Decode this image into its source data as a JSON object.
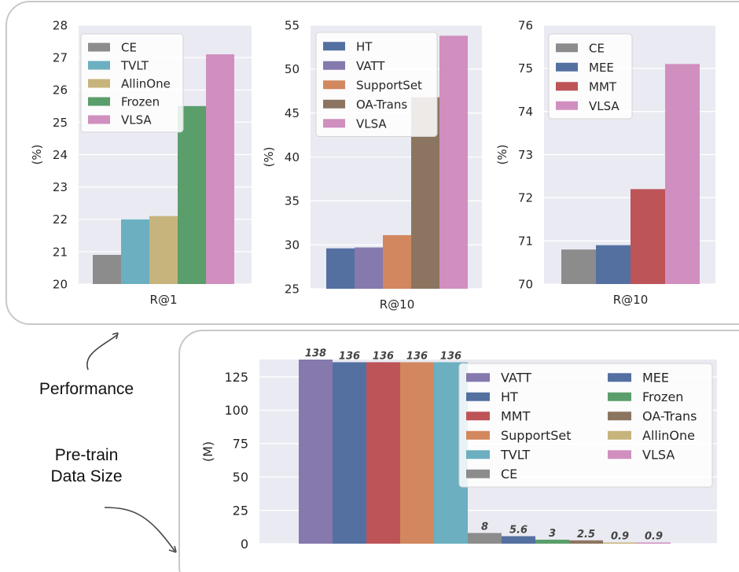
{
  "labels": {
    "performance": "Performance",
    "pretrain_line1": "Pre-train",
    "pretrain_line2": "Data Size"
  },
  "colors": {
    "CE": "#8c8c8c",
    "TVLT": "#6bafc1",
    "AllinOne": "#c6b47c",
    "Frozen": "#5a9e6b",
    "VLSA": "#d08fbf",
    "HT": "#5470a1",
    "VATT": "#8579ad",
    "SupportSet": "#d2875e",
    "OA-Trans": "#8c7560",
    "MEE": "#5470a1",
    "MMT": "#bd5458",
    "panel_bg": "#eaeaf2",
    "grid": "#ffffff",
    "frame": "#c8c8c8"
  },
  "chart_data": [
    {
      "type": "bar",
      "categories": [
        "R@1"
      ],
      "series": [
        {
          "name": "CE",
          "values": [
            20.9
          ]
        },
        {
          "name": "TVLT",
          "values": [
            22.0
          ]
        },
        {
          "name": "AllinOne",
          "values": [
            22.1
          ]
        },
        {
          "name": "Frozen",
          "values": [
            25.5
          ]
        },
        {
          "name": "VLSA",
          "values": [
            27.1
          ]
        }
      ],
      "ylabel": "(%)",
      "ylim": [
        20,
        28
      ],
      "yticks": [
        "20",
        "21",
        "22",
        "23",
        "24",
        "25",
        "26",
        "27",
        "28"
      ],
      "grid": true,
      "legend": "top-left"
    },
    {
      "type": "bar",
      "categories": [
        "R@10"
      ],
      "series": [
        {
          "name": "HT",
          "values": [
            29.6
          ]
        },
        {
          "name": "VATT",
          "values": [
            29.7
          ]
        },
        {
          "name": "SupportSet",
          "values": [
            31.1
          ]
        },
        {
          "name": "OA-Trans",
          "values": [
            46.8
          ]
        },
        {
          "name": "VLSA",
          "values": [
            53.8
          ]
        }
      ],
      "ylabel": "(%)",
      "ylim": [
        25,
        55
      ],
      "yticks": [
        "25",
        "30",
        "35",
        "40",
        "45",
        "50",
        "55"
      ],
      "grid": true,
      "legend": "top-left"
    },
    {
      "type": "bar",
      "categories": [
        "R@10"
      ],
      "series": [
        {
          "name": "CE",
          "values": [
            70.8
          ]
        },
        {
          "name": "MEE",
          "values": [
            70.9
          ]
        },
        {
          "name": "MMT",
          "values": [
            72.2
          ]
        },
        {
          "name": "VLSA",
          "values": [
            75.1
          ]
        }
      ],
      "ylabel": "(%)",
      "ylim": [
        70,
        76
      ],
      "yticks": [
        "70",
        "71",
        "72",
        "73",
        "74",
        "75",
        "76"
      ],
      "grid": true,
      "legend": "top-left"
    },
    {
      "type": "bar",
      "categories": [
        ""
      ],
      "series": [
        {
          "name": "VATT",
          "values": [
            138
          ],
          "label": "138"
        },
        {
          "name": "HT",
          "values": [
            136
          ],
          "label": "136"
        },
        {
          "name": "MMT",
          "values": [
            136
          ],
          "label": "136"
        },
        {
          "name": "SupportSet",
          "values": [
            136
          ],
          "label": "136"
        },
        {
          "name": "TVLT",
          "values": [
            136
          ],
          "label": "136"
        },
        {
          "name": "CE",
          "values": [
            8
          ],
          "label": "8"
        },
        {
          "name": "MEE",
          "values": [
            5.6
          ],
          "label": "5.6"
        },
        {
          "name": "Frozen",
          "values": [
            3
          ],
          "label": "3"
        },
        {
          "name": "OA-Trans",
          "values": [
            2.5
          ],
          "label": "2.5"
        },
        {
          "name": "AllinOne",
          "values": [
            0.9
          ],
          "label": "0.9"
        },
        {
          "name": "VLSA",
          "values": [
            0.9
          ],
          "label": "0.9"
        }
      ],
      "ylabel": "(M)",
      "ylim": [
        0,
        138
      ],
      "yticks": [
        "0",
        "25",
        "50",
        "75",
        "100",
        "125"
      ],
      "grid": true,
      "legend": "top-right",
      "legend_columns": 2
    }
  ]
}
